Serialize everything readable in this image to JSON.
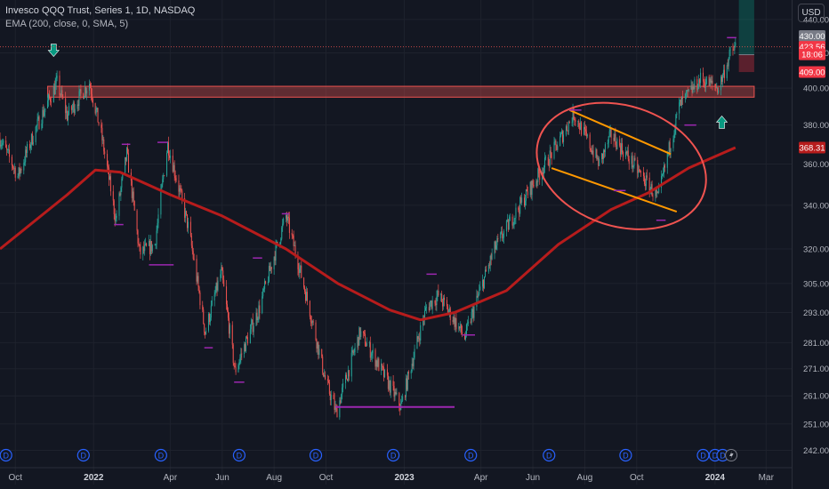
{
  "header": {
    "title": "Invesco QQQ Trust, Series 1, 1D, NASDAQ",
    "indicator": "EMA (200, close, 0, SMA, 5)"
  },
  "currency_button": "USD",
  "colors": {
    "background": "#131722",
    "grid": "#1e222d",
    "up": "#26a69a",
    "down": "#ef5350",
    "ema": "#b71c1c",
    "trendline": "#ff9800",
    "zone": "#ef5350",
    "annotation": "#9c27b0",
    "marker": "#089981",
    "text": "#b2b5be"
  },
  "price_labels": [
    {
      "text": "430.00",
      "value": 430,
      "bg": "#787b86"
    },
    {
      "text": "423.56",
      "value": 423.56,
      "bg": "#f23645"
    },
    {
      "text": "18:06",
      "value": 419.2,
      "bg": "#f23645"
    },
    {
      "text": "409.00",
      "value": 409,
      "bg": "#f23645"
    },
    {
      "text": "368.31",
      "value": 368.31,
      "bg": "#b71c1c"
    }
  ],
  "event_marker_label": "D",
  "chart_data": {
    "type": "candlestick",
    "symbol": "Invesco QQQ Trust, Series 1, 1D, NASDAQ",
    "indicator": "EMA (200, close, 0, SMA, 5)",
    "currency": "USD",
    "log_scale": true,
    "ylim": [
      238,
      452
    ],
    "xlim": [
      "2021-09-13",
      "2024-03-31"
    ],
    "y_ticks": [
      440,
      420,
      400,
      380,
      360,
      340,
      320,
      305,
      293,
      281,
      271,
      261,
      251,
      242
    ],
    "x_ticks": [
      {
        "label": "Oct",
        "date": "2021-10-01"
      },
      {
        "label": "2022",
        "date": "2022-01-01"
      },
      {
        "label": "Apr",
        "date": "2022-04-01"
      },
      {
        "label": "Jun",
        "date": "2022-06-01"
      },
      {
        "label": "Aug",
        "date": "2022-08-01"
      },
      {
        "label": "Oct",
        "date": "2022-10-01"
      },
      {
        "label": "2023",
        "date": "2023-01-01"
      },
      {
        "label": "Apr",
        "date": "2023-04-01"
      },
      {
        "label": "Jun",
        "date": "2023-06-01"
      },
      {
        "label": "Aug",
        "date": "2023-08-01"
      },
      {
        "label": "Oct",
        "date": "2023-10-01"
      },
      {
        "label": "2024",
        "date": "2024-01-01"
      },
      {
        "label": "Mar",
        "date": "2024-03-01"
      }
    ],
    "price_path": [
      [
        "2021-09-13",
        373
      ],
      [
        "2021-10-04",
        354
      ],
      [
        "2021-10-25",
        378
      ],
      [
        "2021-11-19",
        403
      ],
      [
        "2021-12-01",
        385
      ],
      [
        "2021-12-27",
        403
      ],
      [
        "2022-01-10",
        375
      ],
      [
        "2022-01-27",
        333
      ],
      [
        "2022-02-09",
        365
      ],
      [
        "2022-02-24",
        318
      ],
      [
        "2022-03-14",
        322
      ],
      [
        "2022-03-29",
        370
      ],
      [
        "2022-04-22",
        330
      ],
      [
        "2022-05-12",
        285
      ],
      [
        "2022-05-31",
        310
      ],
      [
        "2022-06-16",
        270
      ],
      [
        "2022-07-15",
        295
      ],
      [
        "2022-08-15",
        335
      ],
      [
        "2022-09-30",
        267
      ],
      [
        "2022-10-13",
        255
      ],
      [
        "2022-11-10",
        285
      ],
      [
        "2022-12-28",
        257
      ],
      [
        "2023-01-27",
        295
      ],
      [
        "2023-02-10",
        300
      ],
      [
        "2023-03-13",
        283
      ],
      [
        "2023-04-17",
        320
      ],
      [
        "2023-06-01",
        350
      ],
      [
        "2023-06-30",
        370
      ],
      [
        "2023-07-19",
        386
      ],
      [
        "2023-08-18",
        360
      ],
      [
        "2023-09-01",
        375
      ],
      [
        "2023-10-26",
        343
      ],
      [
        "2023-11-20",
        390
      ],
      [
        "2023-12-15",
        405
      ],
      [
        "2024-01-05",
        400
      ],
      [
        "2024-01-18",
        418
      ],
      [
        "2024-01-25",
        424
      ]
    ],
    "ema_200": [
      [
        "2021-09-13",
        320
      ],
      [
        "2021-12-01",
        345
      ],
      [
        "2022-01-03",
        357
      ],
      [
        "2022-02-01",
        356
      ],
      [
        "2022-04-01",
        345
      ],
      [
        "2022-06-01",
        335
      ],
      [
        "2022-08-15",
        320
      ],
      [
        "2022-10-15",
        305
      ],
      [
        "2022-12-15",
        294
      ],
      [
        "2023-01-20",
        290
      ],
      [
        "2023-03-01",
        293
      ],
      [
        "2023-05-01",
        302
      ],
      [
        "2023-07-01",
        322
      ],
      [
        "2023-09-01",
        338
      ],
      [
        "2023-10-15",
        346
      ],
      [
        "2023-12-01",
        358
      ],
      [
        "2024-01-25",
        368.31
      ]
    ],
    "last_price": 423.56,
    "resistance_zone": {
      "from_date": "2021-11-08",
      "to_date": "2024-02-16",
      "low": 395,
      "high": 401
    },
    "channel_lines": [
      {
        "start": [
          "2023-07-14",
          388
        ],
        "end": [
          "2023-11-10",
          365
        ]
      },
      {
        "start": [
          "2023-06-23",
          358
        ],
        "end": [
          "2023-11-17",
          337
        ]
      }
    ],
    "channel_ellipse": {
      "center": [
        "2023-09-13",
        359
      ],
      "top": 390,
      "bottom": 330,
      "half_width_days": 102,
      "rotation_deg": 18
    },
    "position_tool": {
      "from_date": "2024-01-29",
      "to_date": "2024-02-16",
      "entry": 419,
      "target": 452,
      "stop": 409
    },
    "signal_arrows": [
      {
        "date": "2021-11-15",
        "value": 421,
        "direction": "down"
      },
      {
        "date": "2024-01-09",
        "value": 382,
        "direction": "up"
      }
    ],
    "swing_marks": [
      {
        "from": "2022-02-03",
        "to": "2022-02-13",
        "value": 370
      },
      {
        "from": "2022-03-17",
        "to": "2022-03-29",
        "value": 371
      },
      {
        "from": "2022-01-25",
        "to": "2022-02-05",
        "value": 331
      },
      {
        "from": "2022-03-07",
        "to": "2022-04-05",
        "value": 313
      },
      {
        "from": "2022-06-15",
        "to": "2022-06-27",
        "value": 266
      },
      {
        "from": "2022-05-11",
        "to": "2022-05-21",
        "value": 279
      },
      {
        "from": "2022-07-07",
        "to": "2022-07-18",
        "value": 316
      },
      {
        "from": "2022-08-10",
        "to": "2022-08-19",
        "value": 336
      },
      {
        "from": "2022-10-12",
        "to": "2022-12-30",
        "value": 257,
        "bold": true
      },
      {
        "from": "2022-12-28",
        "to": "2023-03-01",
        "value": 257,
        "bold": true
      },
      {
        "from": "2023-01-27",
        "to": "2023-02-08",
        "value": 309
      },
      {
        "from": "2023-03-10",
        "to": "2023-03-25",
        "value": 284
      },
      {
        "from": "2023-07-14",
        "to": "2023-07-28",
        "value": 388
      },
      {
        "from": "2023-09-04",
        "to": "2023-09-18",
        "value": 347
      },
      {
        "from": "2023-10-24",
        "to": "2023-11-04",
        "value": 333
      },
      {
        "from": "2023-11-26",
        "to": "2023-12-10",
        "value": 380
      },
      {
        "from": "2024-01-15",
        "to": "2024-01-26",
        "value": 429
      }
    ],
    "event_dates": [
      "2021-09-20",
      "2021-12-20",
      "2022-03-21",
      "2022-06-21",
      "2022-09-19",
      "2022-12-19",
      "2023-03-20",
      "2023-06-20",
      "2023-09-18",
      "2023-12-18",
      "2024-01-01",
      "2024-01-10"
    ]
  }
}
